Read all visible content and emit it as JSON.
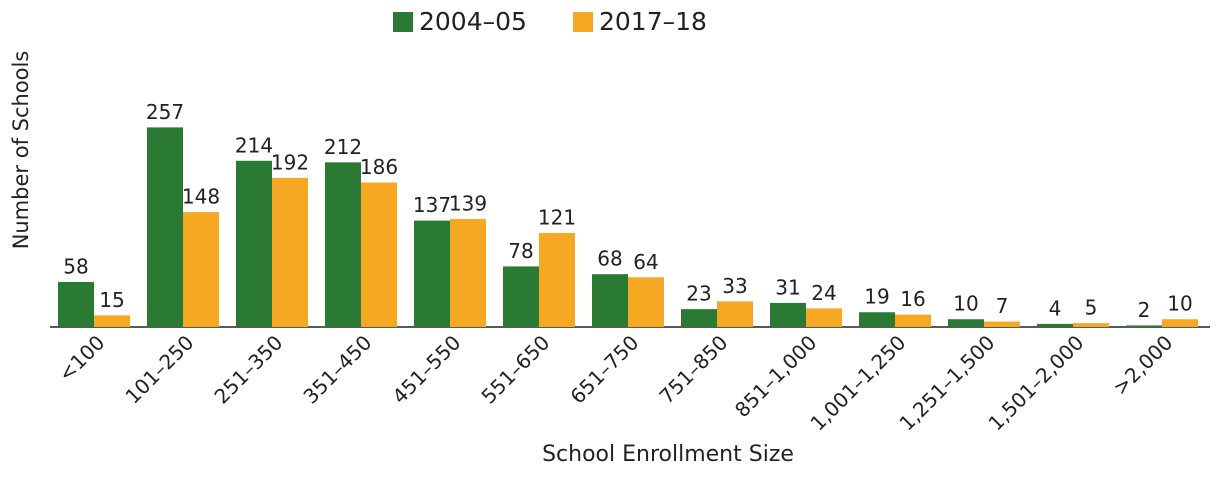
{
  "chart_data": {
    "type": "bar",
    "x_label": "School Enrollment Size",
    "y_label": "Number of Schools",
    "categories": [
      "<100",
      "101–250",
      "251–350",
      "351–450",
      "451–550",
      "551–650",
      "651–750",
      "751–850",
      "851–1,000",
      "1,001–1,250",
      "1,251–1,500",
      "1,501–2,000",
      ">2,000"
    ],
    "series": [
      {
        "name": "2004–05",
        "color": "#2a7a34",
        "values": [
          58,
          257,
          214,
          212,
          137,
          78,
          68,
          23,
          31,
          19,
          10,
          4,
          2
        ]
      },
      {
        "name": "2017–18",
        "color": "#f7a823",
        "values": [
          15,
          148,
          192,
          186,
          139,
          121,
          64,
          33,
          24,
          16,
          7,
          5,
          10
        ]
      }
    ],
    "ylim": [
      0,
      300
    ],
    "legend": "top"
  }
}
